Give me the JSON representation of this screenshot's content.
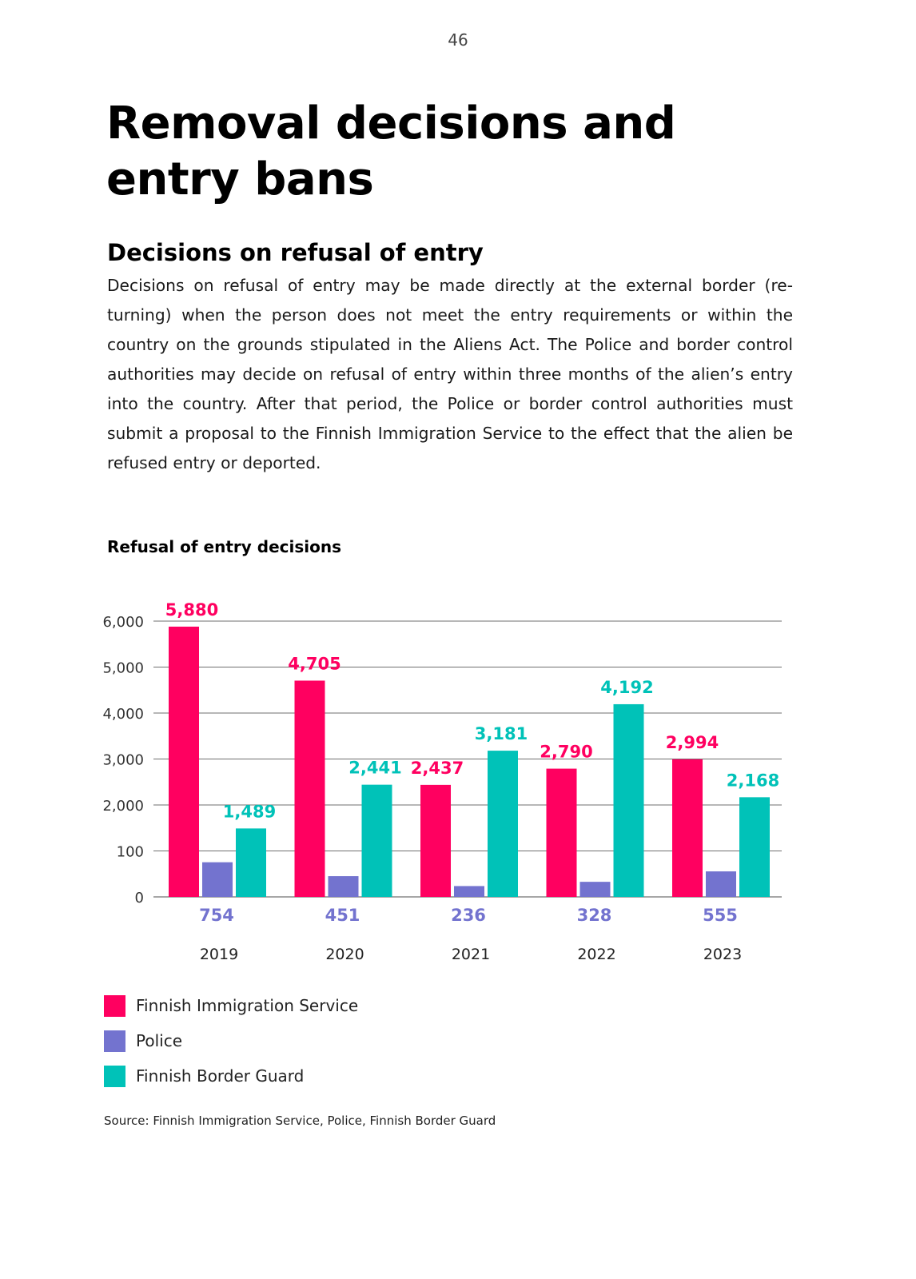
{
  "page": {
    "number": "46",
    "title": "Removal decisions and entry bans",
    "section_heading": "Decisions on refusal of entry",
    "body_text": "Decisions on refusal of entry may be made directly at the external border (re-turning) when the person does not meet the entry requirements or within the country on the grounds stipulated in the Aliens Act. The Police and border control authorities may decide on refusal of entry within three months of the alien’s entry into the country. After that period, the Police or border control authorities must submit a proposal to the Finnish Immigration Service to the effect that the alien be refused entry or deported.",
    "source": "Source: Finnish Immigration Service, Police, Finnish Border Guard"
  },
  "chart_data": {
    "type": "bar",
    "title": "Refusal of entry decisions",
    "xlabel": "",
    "ylabel": "",
    "categories": [
      "2019",
      "2020",
      "2021",
      "2022",
      "2023"
    ],
    "y_tick_labels": [
      "0",
      "100",
      "2,000",
      "3,000",
      "4,000",
      "5,000",
      "6,000"
    ],
    "grid": true,
    "legend_position": "bottom-left",
    "series": [
      {
        "name": "Finnish Immigration Service",
        "color": "#ff0060",
        "values": [
          5880,
          4705,
          2437,
          2790,
          2994
        ],
        "labels": [
          "5,880",
          "4,705",
          "2,437",
          "2,790",
          "2,994"
        ]
      },
      {
        "name": "Police",
        "color": "#7373cf",
        "values": [
          754,
          451,
          236,
          328,
          555
        ],
        "labels": [
          "754",
          "451",
          "236",
          "328",
          "555"
        ]
      },
      {
        "name": "Finnish Border Guard",
        "color": "#00c2b8",
        "values": [
          1489,
          2441,
          3181,
          4192,
          2168
        ],
        "labels": [
          "1,489",
          "2,441",
          "3,181",
          "4,192",
          "2,168"
        ]
      }
    ]
  }
}
